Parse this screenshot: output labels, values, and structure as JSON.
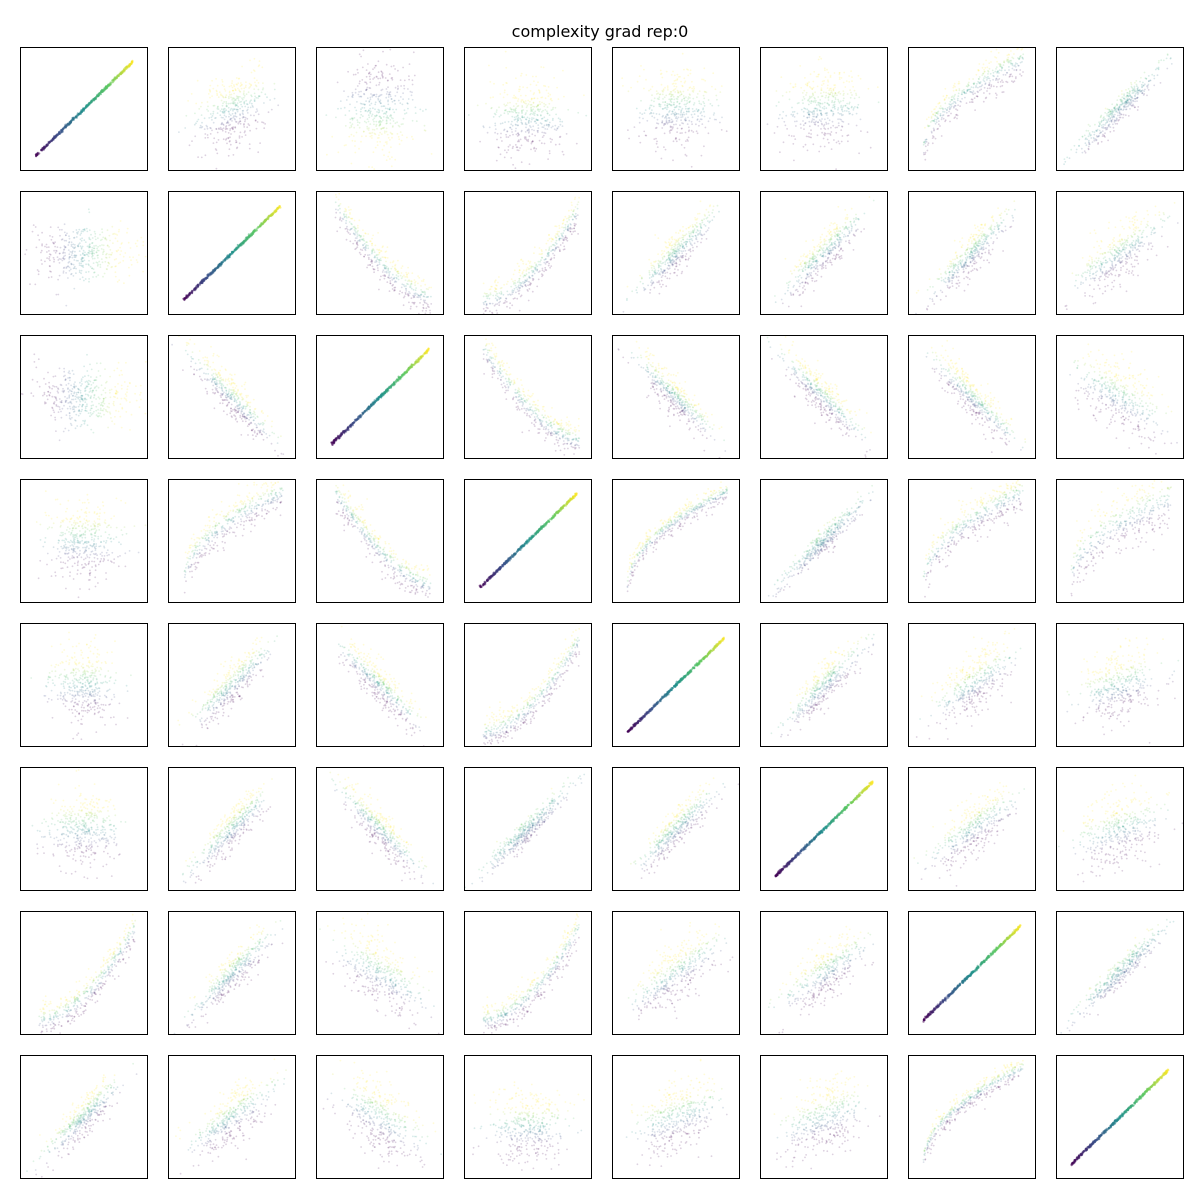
{
  "title": "complexity grad rep:0",
  "chart_data": {
    "type": "scatter",
    "title": "complexity grad rep:0",
    "grid": "off",
    "axes_ticks": "none",
    "layout": {
      "rows": 8,
      "cols": 8
    },
    "colormap": "viridis",
    "palette": [
      "#440154",
      "#3b528b",
      "#21918c",
      "#5ec962",
      "#fde725"
    ],
    "marker_alpha": 0.18,
    "points_per_panel": 420,
    "panel_shapes": [
      [
        "diag",
        "blob-tilt",
        "blob-vertical",
        "blob-low",
        "blob",
        "blob",
        "arc",
        "linear-tight"
      ],
      [
        "blob-wide",
        "diag",
        "neg-curve",
        "curve-up",
        "linear",
        "linear",
        "linear",
        "linear-loose"
      ],
      [
        "blob-wide",
        "neg-linear",
        "diag",
        "neg-curve",
        "neg-linear",
        "neg-linear",
        "neg-linear",
        "neg-loose"
      ],
      [
        "blob",
        "arc",
        "neg-curve",
        "diag",
        "arc-tight",
        "linear-tight",
        "arc",
        "arc-loose"
      ],
      [
        "blob",
        "linear",
        "neg-linear",
        "curve-up",
        "diag",
        "linear",
        "linear-loose",
        "blob-tilt"
      ],
      [
        "blob",
        "linear",
        "neg-linear",
        "linear-tight",
        "linear",
        "diag",
        "linear-loose",
        "blob-tilt"
      ],
      [
        "curve-up",
        "linear",
        "neg-loose",
        "curve-up",
        "linear-loose",
        "linear-loose",
        "diag",
        "linear-tight"
      ],
      [
        "linear",
        "linear-loose",
        "neg-loose",
        "blob-low",
        "blob-tilt",
        "blob-tilt",
        "arc-tight",
        "diag"
      ]
    ]
  }
}
